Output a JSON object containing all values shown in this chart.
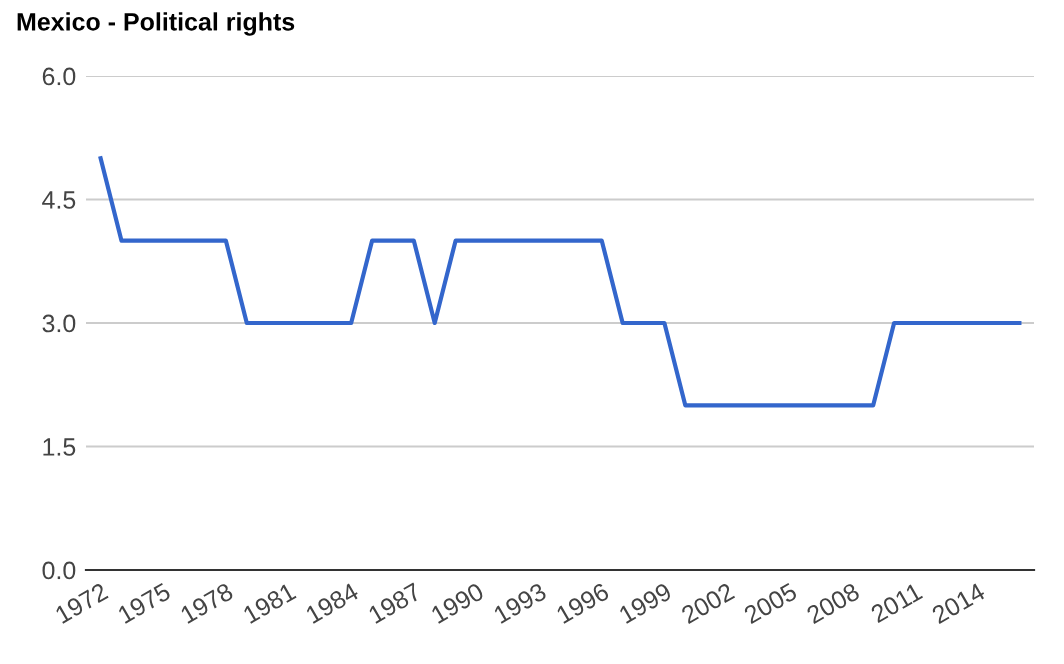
{
  "chart_data": {
    "type": "line",
    "title": "Mexico - Political rights",
    "categories": [
      "1972",
      null,
      null,
      "1975",
      null,
      null,
      "1978",
      null,
      null,
      "1981",
      null,
      null,
      "1984",
      null,
      null,
      "1987",
      null,
      null,
      "1990",
      null,
      null,
      "1993",
      null,
      null,
      "1996",
      null,
      null,
      "1999",
      null,
      null,
      "2002",
      null,
      null,
      "2005",
      null,
      null,
      "2008",
      null,
      null,
      "2011",
      null,
      null,
      "2014",
      null,
      null
    ],
    "series": [
      {
        "color": "#3366cc",
        "values": [
          5,
          4,
          4,
          4,
          4,
          4,
          4,
          3,
          3,
          3,
          3,
          3,
          3,
          4,
          4,
          4,
          3,
          4,
          4,
          4,
          4,
          4,
          4,
          4,
          4,
          3,
          3,
          3,
          2,
          2,
          2,
          2,
          2,
          2,
          2,
          2,
          2,
          2,
          3,
          3,
          3,
          3,
          3,
          3,
          3
        ]
      }
    ],
    "ylim": [
      0,
      6
    ],
    "yticks": [
      {
        "value": 0,
        "label": "0.0"
      },
      {
        "value": 1.5,
        "label": "1.5"
      },
      {
        "value": 3,
        "label": "3.0"
      },
      {
        "value": 4.5,
        "label": "4.5"
      },
      {
        "value": 6,
        "label": "6.0"
      }
    ],
    "grid": "y",
    "marker": "none",
    "line_style": "solid"
  }
}
